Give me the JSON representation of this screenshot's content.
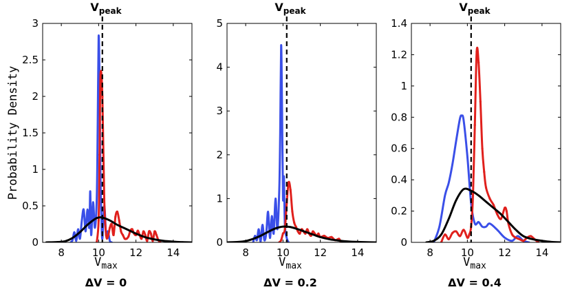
{
  "figure": {
    "ylabel": "Probability Density",
    "xlabel_main": "V",
    "xlabel_sub": "max",
    "peak_label_main": "V",
    "peak_label_sub": "peak",
    "peak_value": 10.2
  },
  "colors": {
    "blue": "#3a4fe8",
    "red": "#e0201c",
    "black": "#000000"
  },
  "chart_data": [
    {
      "type": "line",
      "subtitle": "ΔV = 0",
      "xlim": [
        7,
        15
      ],
      "ylim": [
        0,
        3
      ],
      "xticks": [
        8,
        10,
        12,
        14
      ],
      "xtick_labels": [
        "8",
        "10",
        "12",
        "14"
      ],
      "yticks": [
        0,
        0.5,
        1,
        1.5,
        2,
        2.5,
        3
      ],
      "ytick_labels": [
        "0",
        "0.5",
        "1",
        "1.5",
        "2",
        "2.5",
        "3"
      ],
      "series": [
        {
          "name": "blue",
          "color": "#3a4fe8",
          "markers": false,
          "x": [
            8.5,
            8.6,
            8.7,
            8.8,
            8.9,
            9.0,
            9.1,
            9.2,
            9.3,
            9.4,
            9.5,
            9.55,
            9.6,
            9.7,
            9.8,
            9.9,
            9.95,
            10.0,
            10.05,
            10.1,
            10.15,
            10.2,
            10.3,
            10.4,
            10.5,
            10.6,
            10.7
          ],
          "y": [
            0,
            0.03,
            0.14,
            0.02,
            0.18,
            0.05,
            0.3,
            0.45,
            0.15,
            0.45,
            0.2,
            0.7,
            0.1,
            0.55,
            0.2,
            0.6,
            1.6,
            2.82,
            2.2,
            0.9,
            0.35,
            0.05,
            0.5,
            0.12,
            0.15,
            0.02,
            0
          ]
        },
        {
          "name": "red",
          "color": "#e0201c",
          "markers": true,
          "x": [
            9.9,
            10.0,
            10.05,
            10.1,
            10.2,
            10.3,
            10.4,
            10.5,
            10.6,
            10.7,
            10.8,
            10.9,
            11.0,
            11.1,
            11.2,
            11.3,
            11.4,
            11.5,
            11.6,
            11.7,
            11.8,
            11.9,
            12.0,
            12.1,
            12.2,
            12.3,
            12.4,
            12.5,
            12.6,
            12.7,
            12.8,
            12.9,
            13.0,
            13.1,
            13.2,
            13.3
          ],
          "y": [
            0,
            0.3,
            1.2,
            2.3,
            2.0,
            0.6,
            0.1,
            0.08,
            0.2,
            0.25,
            0.1,
            0.35,
            0.42,
            0.3,
            0.15,
            0.1,
            0.05,
            0.05,
            0.08,
            0.16,
            0.18,
            0.12,
            0.1,
            0.16,
            0.1,
            0.05,
            0.15,
            0.1,
            0.02,
            0.15,
            0.12,
            0.02,
            0.15,
            0.1,
            0.03,
            0
          ]
        },
        {
          "name": "black",
          "color": "#000000",
          "markers": false,
          "x": [
            7.2,
            7.8,
            8.2,
            8.6,
            9.0,
            9.4,
            9.8,
            10.0,
            10.2,
            10.6,
            11.0,
            11.5,
            12.0,
            12.5,
            13.0,
            13.5,
            14.0,
            14.5,
            15.0
          ],
          "y": [
            0,
            0.005,
            0.015,
            0.06,
            0.14,
            0.24,
            0.32,
            0.34,
            0.34,
            0.3,
            0.24,
            0.18,
            0.12,
            0.07,
            0.04,
            0.02,
            0.01,
            0.003,
            0
          ]
        }
      ]
    },
    {
      "type": "line",
      "subtitle": "ΔV = 0.2",
      "xlim": [
        7,
        15
      ],
      "ylim": [
        0,
        5
      ],
      "xticks": [
        8,
        10,
        12,
        14
      ],
      "xtick_labels": [
        "8",
        "10",
        "12",
        "14"
      ],
      "yticks": [
        0,
        1,
        2,
        3,
        4,
        5
      ],
      "ytick_labels": [
        "0",
        "1",
        "2",
        "3",
        "4",
        "5"
      ],
      "series": [
        {
          "name": "blue",
          "color": "#3a4fe8",
          "markers": false,
          "x": [
            8.4,
            8.5,
            8.6,
            8.7,
            8.8,
            8.9,
            9.0,
            9.1,
            9.2,
            9.3,
            9.4,
            9.5,
            9.6,
            9.7,
            9.8,
            9.85,
            9.9,
            9.95,
            10.0,
            10.05,
            10.1,
            10.2,
            10.3
          ],
          "y": [
            0,
            0.15,
            0.05,
            0.3,
            0.02,
            0.4,
            0.05,
            0.2,
            0.7,
            0.1,
            0.6,
            0.2,
            1.0,
            0.3,
            1.2,
            2.5,
            4.5,
            3.0,
            1.0,
            1.5,
            0.4,
            0.1,
            0
          ]
        },
        {
          "name": "red",
          "color": "#e0201c",
          "markers": true,
          "x": [
            9.8,
            9.9,
            10.0,
            10.1,
            10.2,
            10.3,
            10.4,
            10.5,
            10.6,
            10.7,
            10.8,
            10.9,
            11.0,
            11.1,
            11.2,
            11.3,
            11.4,
            11.5,
            11.6,
            11.7,
            11.8,
            11.9,
            12.0,
            12.2,
            12.4,
            12.6,
            12.8,
            13.0,
            13.1
          ],
          "y": [
            0,
            0.05,
            0.2,
            0.3,
            0.9,
            1.37,
            1.2,
            0.7,
            0.45,
            0.35,
            0.25,
            0.2,
            0.3,
            0.25,
            0.2,
            0.3,
            0.2,
            0.15,
            0.25,
            0.2,
            0.15,
            0.2,
            0.12,
            0.15,
            0.1,
            0.12,
            0.05,
            0.08,
            0
          ]
        },
        {
          "name": "black",
          "color": "#000000",
          "markers": false,
          "x": [
            7.0,
            7.6,
            8.0,
            8.4,
            8.8,
            9.2,
            9.6,
            10.0,
            10.4,
            10.8,
            11.2,
            11.6,
            12.0,
            12.5,
            13.0,
            13.5,
            14.0,
            14.5,
            15.0
          ],
          "y": [
            0,
            0.01,
            0.03,
            0.08,
            0.15,
            0.24,
            0.32,
            0.36,
            0.35,
            0.3,
            0.24,
            0.18,
            0.12,
            0.07,
            0.04,
            0.02,
            0.01,
            0.003,
            0
          ]
        }
      ]
    },
    {
      "type": "line",
      "subtitle": "ΔV = 0.4",
      "xlim": [
        7,
        15
      ],
      "ylim": [
        0,
        1.4
      ],
      "xticks": [
        8,
        10,
        12,
        14
      ],
      "xtick_labels": [
        "8",
        "10",
        "12",
        "14"
      ],
      "yticks": [
        0,
        0.2,
        0.4,
        0.6,
        0.8,
        1,
        1.2,
        1.4
      ],
      "ytick_labels": [
        "0",
        "0.2",
        "0.4",
        "0.6",
        "0.8",
        "1",
        "1.2",
        "1.4"
      ],
      "series": [
        {
          "name": "blue",
          "color": "#3a4fe8",
          "markers": false,
          "x": [
            8.2,
            8.5,
            8.8,
            9.0,
            9.2,
            9.4,
            9.6,
            9.7,
            9.8,
            10.0,
            10.2,
            10.4,
            10.6,
            10.8,
            11.0,
            11.2,
            11.6,
            12.0,
            12.4,
            12.7,
            13.0,
            13.3
          ],
          "y": [
            0,
            0.1,
            0.3,
            0.38,
            0.5,
            0.65,
            0.79,
            0.81,
            0.78,
            0.55,
            0.25,
            0.12,
            0.13,
            0.1,
            0.1,
            0.12,
            0.08,
            0.03,
            0.01,
            0.04,
            0.01,
            0
          ]
        },
        {
          "name": "red",
          "color": "#e0201c",
          "markers": true,
          "x": [
            8.6,
            8.8,
            9.0,
            9.2,
            9.4,
            9.6,
            9.8,
            10.0,
            10.1,
            10.2,
            10.3,
            10.4,
            10.5,
            10.6,
            10.7,
            10.8,
            10.9,
            11.0,
            11.2,
            11.4,
            11.6,
            11.8,
            12.0,
            12.1,
            12.2,
            12.4,
            12.6,
            12.8,
            13.0,
            13.2,
            13.4,
            13.6,
            13.8
          ],
          "y": [
            0,
            0.05,
            0.02,
            0.06,
            0.07,
            0.04,
            0.08,
            0.03,
            0.05,
            0.1,
            0.3,
            0.75,
            1.22,
            1.15,
            0.9,
            0.6,
            0.45,
            0.35,
            0.28,
            0.24,
            0.18,
            0.15,
            0.22,
            0.2,
            0.12,
            0.05,
            0.03,
            0.02,
            0.01,
            0.03,
            0.04,
            0.02,
            0
          ]
        },
        {
          "name": "black",
          "color": "#000000",
          "markers": false,
          "x": [
            7.8,
            8.2,
            8.6,
            9.0,
            9.4,
            9.8,
            10.2,
            10.6,
            11.0,
            11.4,
            11.8,
            12.2,
            12.6,
            13.0,
            13.5,
            14.0,
            14.5,
            15.0
          ],
          "y": [
            0,
            0.01,
            0.05,
            0.15,
            0.27,
            0.34,
            0.33,
            0.3,
            0.26,
            0.22,
            0.18,
            0.13,
            0.08,
            0.04,
            0.02,
            0.01,
            0.003,
            0
          ]
        }
      ]
    }
  ]
}
